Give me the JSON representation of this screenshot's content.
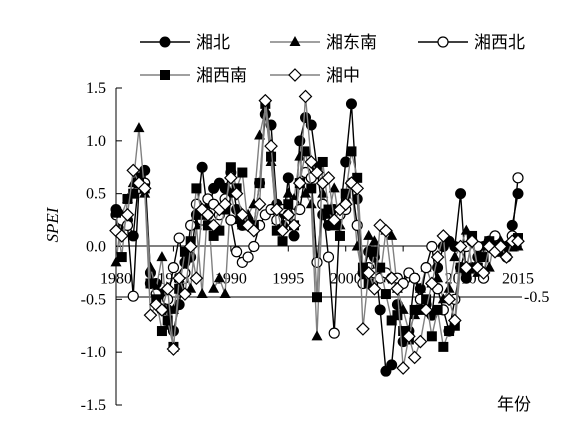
{
  "chart_data": {
    "type": "line",
    "ylabel": "SPEI",
    "xlabel": "年份",
    "ylim": [
      -1.5,
      1.5
    ],
    "yticks": [
      -1.5,
      -1.0,
      -0.5,
      0.0,
      0.5,
      1.0,
      1.5
    ],
    "ytick_labels": [
      "-1.5",
      "-1.0",
      "-0.5",
      "0.0",
      "0.5",
      "1.0",
      "1.5"
    ],
    "xlim": [
      1980,
      2015
    ],
    "xticks": [
      1980,
      1985,
      1990,
      1995,
      2000,
      2005,
      2010,
      2015
    ],
    "xtick_labels": [
      "1980",
      "1985",
      "1990",
      "1995",
      "2000",
      "2005",
      "2010",
      "2015"
    ],
    "reference_line": {
      "y": -0.5,
      "label": "-0.5"
    },
    "grid": false,
    "legend_position": "top",
    "x": [
      1980,
      1980.5,
      1981,
      1981.5,
      1982,
      1982.5,
      1983,
      1983.5,
      1984,
      1984.5,
      1985,
      1985.5,
      1986,
      1986.5,
      1987,
      1987.5,
      1988,
      1988.5,
      1989,
      1989.5,
      1990,
      1990.5,
      1991,
      1991.5,
      1992,
      1992.5,
      1993,
      1993.5,
      1994,
      1994.5,
      1995,
      1995.5,
      1996,
      1996.5,
      1997,
      1997.5,
      1998,
      1998.5,
      1999,
      1999.5,
      2000,
      2000.5,
      2001,
      2001.5,
      2002,
      2002.5,
      2003,
      2003.5,
      2004,
      2004.5,
      2005,
      2005.5,
      2006,
      2006.5,
      2007,
      2007.5,
      2008,
      2008.5,
      2009,
      2009.5,
      2010,
      2010.5,
      2011,
      2011.5,
      2012,
      2012.5,
      2013,
      2013.5,
      2014,
      2014.5,
      2015
    ],
    "series": [
      {
        "name": "湘北",
        "marker": "circle-filled",
        "line_color": "#000000",
        "values": [
          0.35,
          0.2,
          0.25,
          0.1,
          0.65,
          0.72,
          -0.25,
          -0.35,
          -0.45,
          -0.6,
          -0.8,
          -0.55,
          -0.15,
          -0.1,
          0.3,
          0.75,
          0.3,
          0.55,
          0.6,
          0.55,
          0.7,
          0.35,
          0.2,
          0.25,
          0.2,
          0.6,
          1.25,
          1.15,
          0.4,
          0.2,
          0.65,
          0.1,
          1.0,
          1.22,
          1.15,
          0.75,
          0.3,
          0.2,
          0.35,
          0.3,
          0.8,
          1.35,
          0.45,
          -0.25,
          -0.05,
          -0.1,
          -0.6,
          -1.18,
          -1.12,
          -0.55,
          -0.9,
          -0.8,
          -0.3,
          -0.4,
          -0.55,
          -0.65,
          -0.2,
          0.0,
          0.05,
          0.0,
          0.5,
          -0.3,
          -0.2,
          -0.1,
          0.0,
          0.05,
          0.1,
          0.0,
          -0.1,
          0.2,
          0.5
        ]
      },
      {
        "name": "湘东南",
        "marker": "triangle-filled",
        "line_color": "#808080",
        "values": [
          -0.15,
          0.3,
          0.45,
          0.6,
          1.12,
          0.5,
          -0.2,
          -0.4,
          -0.1,
          -0.75,
          -0.6,
          -0.3,
          -0.2,
          -0.4,
          0.2,
          -0.45,
          0.4,
          -0.4,
          -0.3,
          -0.45,
          0.5,
          0.25,
          0.2,
          0.3,
          0.4,
          1.05,
          1.3,
          0.8,
          0.25,
          0.3,
          0.5,
          0.45,
          0.85,
          0.5,
          0.4,
          -0.85,
          0.5,
          0.3,
          0.55,
          0.2,
          0.45,
          0.6,
          0.0,
          -0.3,
          0.1,
          0.05,
          -0.3,
          0.15,
          0.1,
          -0.4,
          -0.6,
          -0.8,
          -0.65,
          -0.4,
          -0.2,
          -0.35,
          -0.3,
          -0.5,
          -0.4,
          -0.1,
          0.0,
          0.15,
          -0.2,
          -0.25,
          0.0,
          -0.2,
          0.1,
          0.05,
          0.0,
          0.05,
          0.0
        ]
      },
      {
        "name": "湘西北",
        "marker": "circle-open",
        "line_color": "#000000",
        "values": [
          0.3,
          0.25,
          0.2,
          -0.47,
          0.55,
          0.6,
          -0.35,
          -0.45,
          -0.6,
          -0.5,
          -0.2,
          0.08,
          -0.25,
          0.2,
          0.4,
          0.25,
          0.45,
          0.4,
          0.3,
          0.45,
          0.25,
          -0.05,
          -0.15,
          -0.1,
          0.0,
          0.2,
          0.3,
          0.35,
          0.25,
          0.35,
          0.3,
          0.4,
          0.35,
          0.7,
          0.65,
          -0.15,
          0.4,
          -0.1,
          -0.82,
          0.3,
          0.35,
          0.6,
          0.2,
          -0.35,
          -0.2,
          -0.25,
          -0.3,
          -0.25,
          -0.3,
          -0.3,
          -0.35,
          -0.25,
          -0.3,
          -0.5,
          -0.2,
          0.0,
          -0.4,
          -0.6,
          -0.8,
          -0.5,
          -0.2,
          0.0,
          0.05,
          0.0,
          -0.3,
          0.05,
          0.1,
          0.0,
          0.0,
          0.1,
          0.65
        ]
      },
      {
        "name": "湘西南",
        "marker": "square-filled",
        "line_color": "#808080",
        "values": [
          0.32,
          -0.1,
          0.45,
          0.5,
          0.6,
          0.55,
          -0.35,
          -0.5,
          -0.8,
          -0.7,
          -0.95,
          -0.4,
          -0.05,
          0.05,
          0.55,
          0.3,
          0.2,
          0.1,
          0.15,
          0.35,
          0.75,
          0.55,
          0.7,
          0.2,
          0.2,
          0.6,
          1.35,
          0.85,
          0.15,
          0.05,
          0.4,
          0.2,
          0.6,
          0.9,
          0.55,
          -0.48,
          0.8,
          0.35,
          0.2,
          0.1,
          0.5,
          0.9,
          0.65,
          -0.2,
          -0.35,
          -0.05,
          -0.2,
          -0.45,
          -0.7,
          -0.65,
          -0.8,
          -0.88,
          -0.6,
          -0.6,
          -0.5,
          -0.85,
          -0.6,
          -0.95,
          -0.8,
          -0.75,
          -0.2,
          -0.25,
          0.1,
          -0.2,
          -0.1,
          0.05,
          0.0,
          -0.05,
          0.0,
          0.0,
          0.08
        ]
      },
      {
        "name": "湘中",
        "marker": "diamond-open",
        "line_color": "#808080",
        "values": [
          0.15,
          0.1,
          0.3,
          0.72,
          0.6,
          0.55,
          -0.65,
          -0.55,
          -0.6,
          -0.4,
          -0.97,
          -0.3,
          -0.45,
          0.0,
          -0.3,
          0.35,
          0.3,
          0.2,
          0.35,
          0.4,
          0.65,
          0.5,
          0.3,
          0.2,
          0.15,
          0.4,
          1.38,
          0.95,
          0.35,
          0.15,
          0.3,
          0.2,
          0.6,
          1.42,
          0.8,
          0.7,
          0.6,
          0.65,
          0.25,
          0.35,
          0.4,
          0.6,
          0.55,
          -0.78,
          -0.25,
          -0.4,
          0.2,
          0.15,
          -0.3,
          -0.4,
          -1.15,
          -0.85,
          -1.05,
          -0.9,
          -0.6,
          -0.35,
          -0.1,
          0.1,
          -0.5,
          -0.7,
          0.0,
          -0.2,
          0.05,
          -0.2,
          -0.25,
          0.0,
          -0.05,
          0.0,
          -0.1,
          0.05,
          0.05
        ]
      }
    ]
  }
}
